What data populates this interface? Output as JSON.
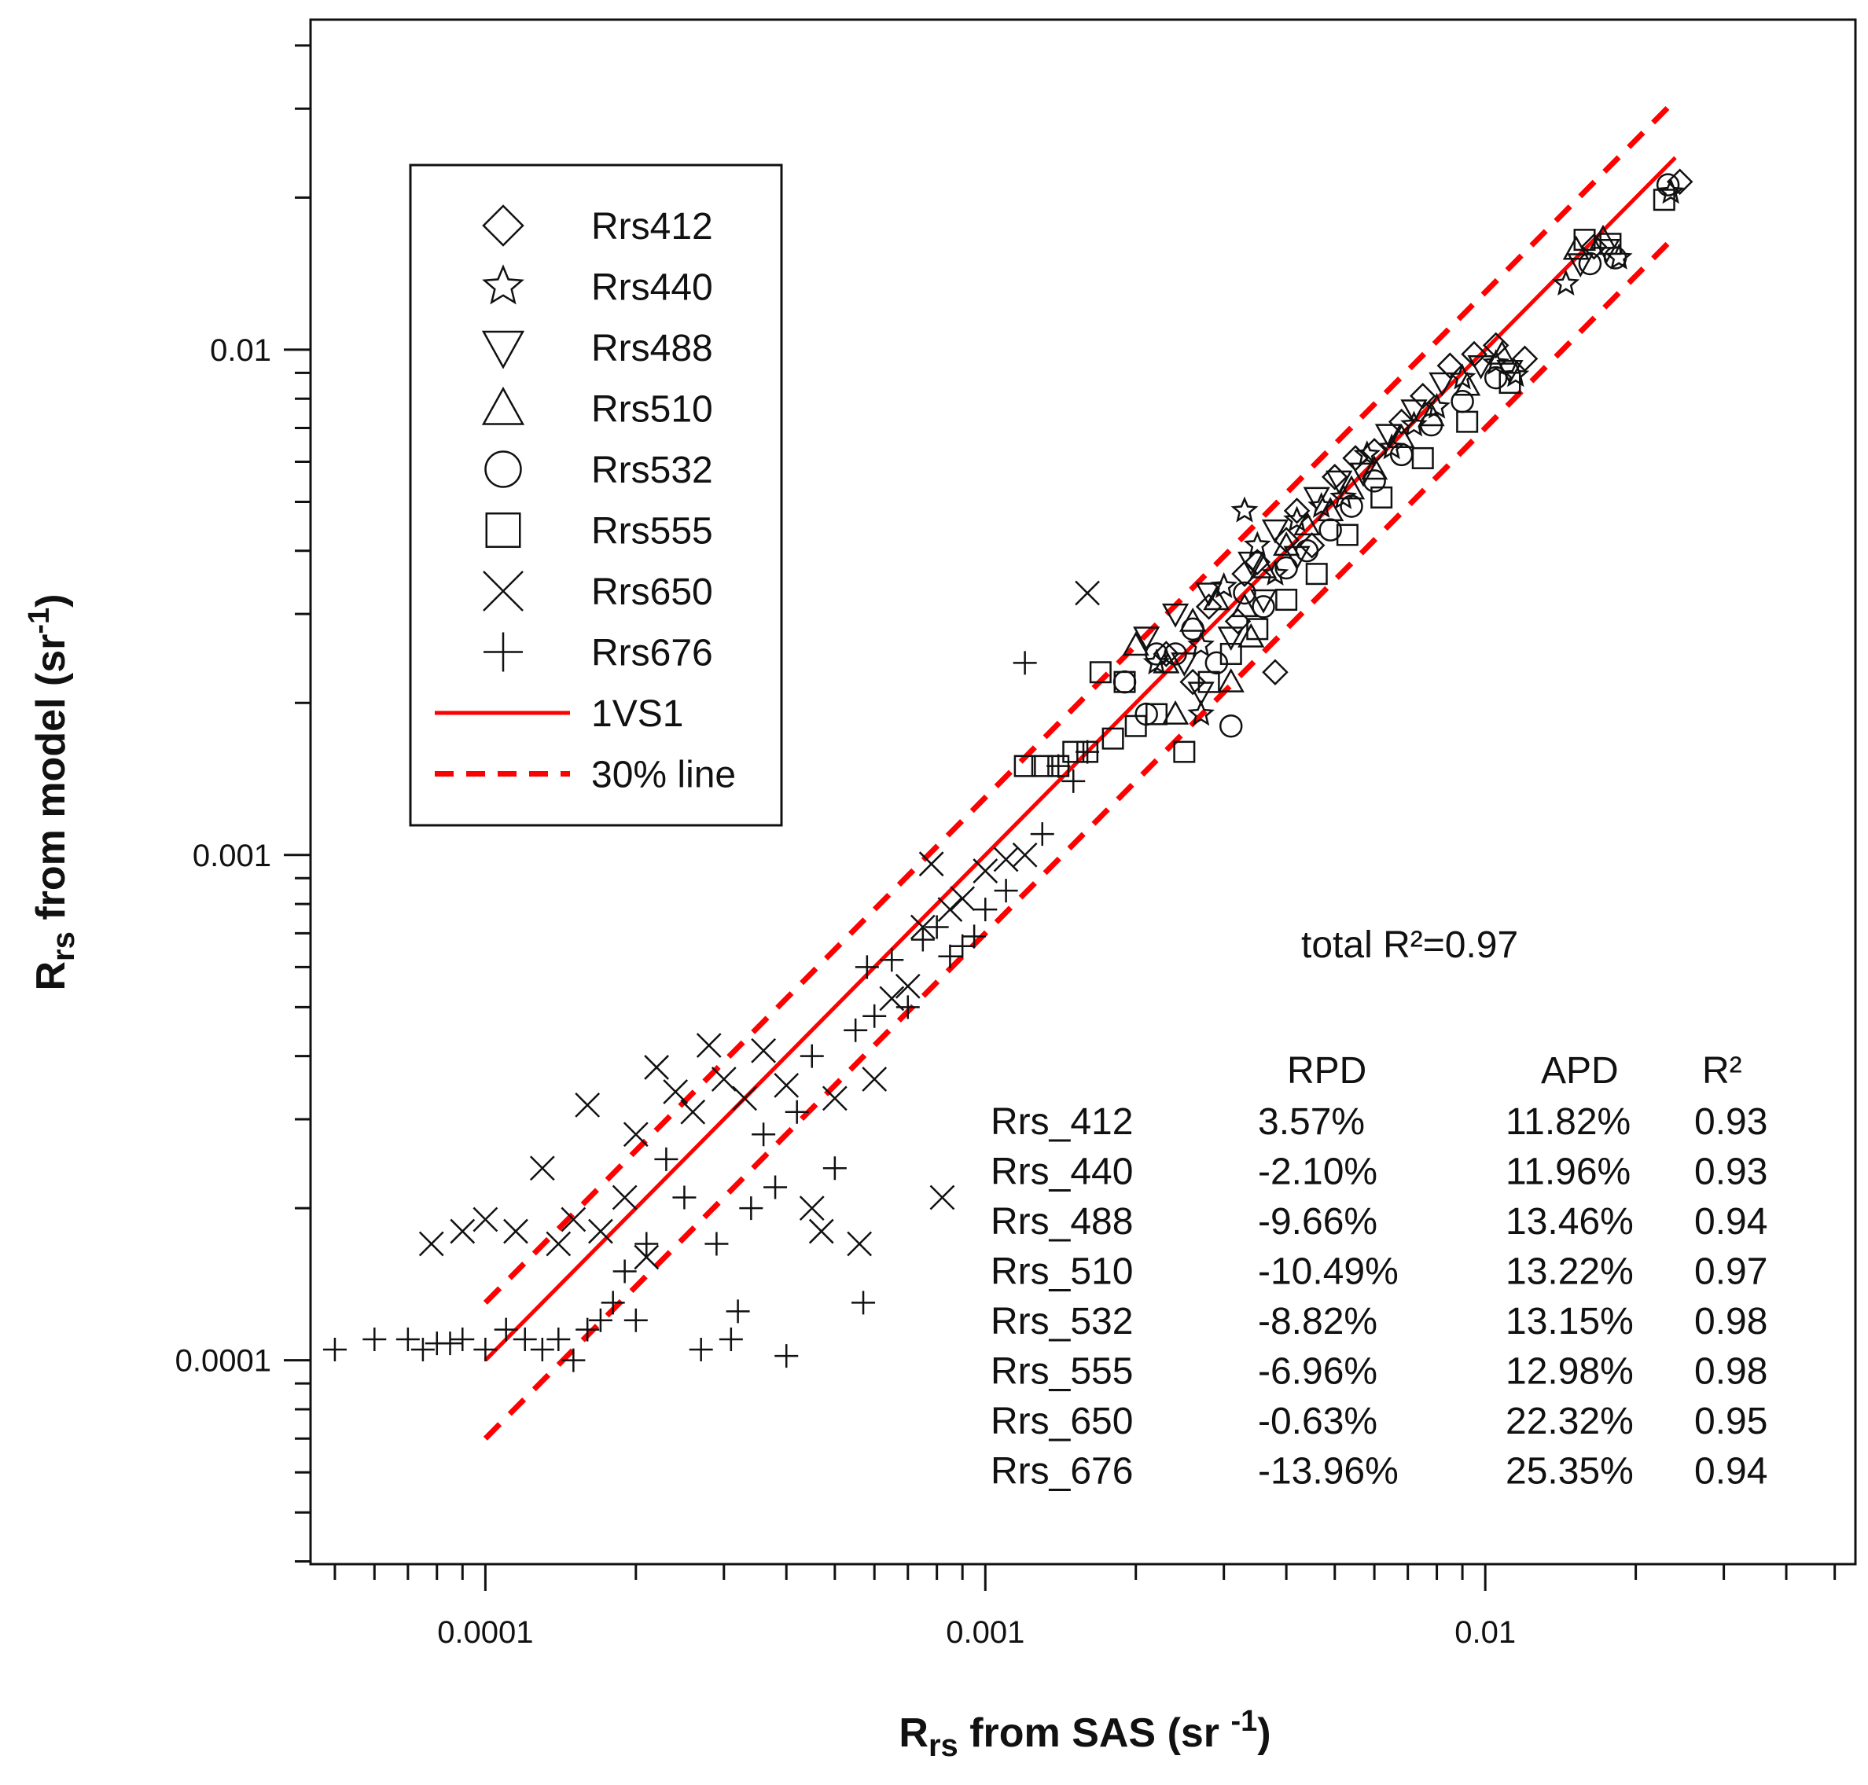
{
  "chart_data": {
    "type": "scatter",
    "x_scale": "log",
    "y_scale": "log",
    "xlim": [
      4.47e-05,
      0.055
    ],
    "ylim": [
      3.95e-05,
      0.045
    ],
    "xlabel": {
      "main": "R",
      "sub": "rs",
      "rest": " from SAS (sr ",
      "sup": "-1",
      "end": ")"
    },
    "ylabel": {
      "main": "R",
      "sub": "rs",
      "rest": " from model (sr",
      "sup": "-1",
      "end": ")"
    },
    "x_ticks": [
      {
        "value": 0.0001,
        "label": "0.0001"
      },
      {
        "value": 0.001,
        "label": "0.001"
      },
      {
        "value": 0.01,
        "label": "0.01"
      }
    ],
    "y_ticks": [
      {
        "value": 0.0001,
        "label": "0.0001"
      },
      {
        "value": 0.001,
        "label": "0.001"
      },
      {
        "value": 0.01,
        "label": "0.01"
      }
    ],
    "legend": [
      {
        "marker": "diamond",
        "label": "Rrs412"
      },
      {
        "marker": "star",
        "label": "Rrs440"
      },
      {
        "marker": "triangle-down",
        "label": "Rrs488"
      },
      {
        "marker": "triangle-up",
        "label": "Rrs510"
      },
      {
        "marker": "circle",
        "label": "Rrs532"
      },
      {
        "marker": "square",
        "label": "Rrs555"
      },
      {
        "marker": "x",
        "label": "Rrs650"
      },
      {
        "marker": "plus",
        "label": "Rrs676"
      },
      {
        "marker": "solid-line",
        "label": "1VS1"
      },
      {
        "marker": "dashed-line",
        "label": "30% line"
      }
    ],
    "line_color": "#ff0000",
    "lines": [
      {
        "name": "1VS1",
        "style": "solid",
        "x": [
          0.0001,
          0.024
        ],
        "y": [
          0.0001,
          0.024
        ]
      },
      {
        "name": "30% line upper",
        "style": "dashed",
        "x": [
          0.0001,
          0.024
        ],
        "y": [
          0.00013,
          0.0312
        ]
      },
      {
        "name": "30% line lower",
        "style": "dashed",
        "x": [
          0.0001,
          0.024
        ],
        "y": [
          7e-05,
          0.0168
        ]
      }
    ],
    "annotation": "total R²=0.97",
    "stats_table": {
      "headers": [
        "",
        "RPD",
        "APD",
        "R²"
      ],
      "rows": [
        [
          "Rrs_412",
          "3.57%",
          "11.82%",
          "0.93"
        ],
        [
          "Rrs_440",
          "-2.10%",
          "11.96%",
          "0.93"
        ],
        [
          "Rrs_488",
          "-9.66%",
          "13.46%",
          "0.94"
        ],
        [
          "Rrs_510",
          "-10.49%",
          "13.22%",
          "0.97"
        ],
        [
          "Rrs_532",
          "-8.82%",
          "13.15%",
          "0.98"
        ],
        [
          "Rrs_555",
          "-6.96%",
          "12.98%",
          "0.98"
        ],
        [
          "Rrs_650",
          "-0.63%",
          "22.32%",
          "0.95"
        ],
        [
          "Rrs_676",
          "-13.96%",
          "25.35%",
          "0.94"
        ]
      ]
    },
    "series": [
      {
        "name": "Rrs412",
        "marker": "diamond",
        "points": [
          [
            0.0023,
            0.0025
          ],
          [
            0.0028,
            0.0031
          ],
          [
            0.0032,
            0.0029
          ],
          [
            0.0035,
            0.0038
          ],
          [
            0.004,
            0.0042
          ],
          [
            0.0045,
            0.0041
          ],
          [
            0.005,
            0.0056
          ],
          [
            0.0055,
            0.0061
          ],
          [
            0.006,
            0.0063
          ],
          [
            0.0068,
            0.0072
          ],
          [
            0.0075,
            0.0081
          ],
          [
            0.0085,
            0.0093
          ],
          [
            0.0095,
            0.0098
          ],
          [
            0.0105,
            0.0102
          ],
          [
            0.012,
            0.0096
          ],
          [
            0.0165,
            0.016
          ],
          [
            0.0245,
            0.0215
          ],
          [
            0.0038,
            0.0023
          ],
          [
            0.0026,
            0.0022
          ],
          [
            0.0042,
            0.0048
          ],
          [
            0.0033,
            0.0036
          ]
        ]
      },
      {
        "name": "Rrs440",
        "marker": "star",
        "points": [
          [
            0.0022,
            0.0024
          ],
          [
            0.0027,
            0.0026
          ],
          [
            0.003,
            0.0034
          ],
          [
            0.0035,
            0.0041
          ],
          [
            0.0038,
            0.0036
          ],
          [
            0.0042,
            0.0046
          ],
          [
            0.0047,
            0.0049
          ],
          [
            0.0052,
            0.0051
          ],
          [
            0.0058,
            0.0062
          ],
          [
            0.0065,
            0.0064
          ],
          [
            0.0072,
            0.0071
          ],
          [
            0.008,
            0.0077
          ],
          [
            0.009,
            0.0088
          ],
          [
            0.0105,
            0.0094
          ],
          [
            0.0115,
            0.0089
          ],
          [
            0.0145,
            0.0135
          ],
          [
            0.0185,
            0.0152
          ],
          [
            0.0235,
            0.0205
          ],
          [
            0.0033,
            0.0048
          ],
          [
            0.0027,
            0.0019
          ]
        ]
      },
      {
        "name": "Rrs488",
        "marker": "triangle-down",
        "points": [
          [
            0.0021,
            0.0027
          ],
          [
            0.0024,
            0.003
          ],
          [
            0.0028,
            0.0033
          ],
          [
            0.0031,
            0.0027
          ],
          [
            0.0034,
            0.0038
          ],
          [
            0.0038,
            0.0044
          ],
          [
            0.0042,
            0.0039
          ],
          [
            0.0046,
            0.0051
          ],
          [
            0.0051,
            0.0055
          ],
          [
            0.0057,
            0.0057
          ],
          [
            0.0064,
            0.0068
          ],
          [
            0.0072,
            0.0076
          ],
          [
            0.0082,
            0.0086
          ],
          [
            0.0098,
            0.0093
          ],
          [
            0.0112,
            0.0091
          ],
          [
            0.0155,
            0.0148
          ],
          [
            0.0175,
            0.0158
          ],
          [
            0.0027,
            0.0021
          ],
          [
            0.0036,
            0.0032
          ],
          [
            0.0025,
            0.0024
          ]
        ]
      },
      {
        "name": "Rrs510",
        "marker": "triangle-up",
        "points": [
          [
            0.002,
            0.0026
          ],
          [
            0.0023,
            0.0024
          ],
          [
            0.0026,
            0.0029
          ],
          [
            0.0029,
            0.0032
          ],
          [
            0.0033,
            0.0031
          ],
          [
            0.0036,
            0.0037
          ],
          [
            0.004,
            0.0041
          ],
          [
            0.0044,
            0.0045
          ],
          [
            0.0049,
            0.0048
          ],
          [
            0.0054,
            0.0053
          ],
          [
            0.006,
            0.0058
          ],
          [
            0.0068,
            0.0067
          ],
          [
            0.0078,
            0.0074
          ],
          [
            0.0092,
            0.0085
          ],
          [
            0.0108,
            0.0098
          ],
          [
            0.0152,
            0.0158
          ],
          [
            0.0172,
            0.0166
          ],
          [
            0.0031,
            0.0022
          ],
          [
            0.0024,
            0.0019
          ],
          [
            0.0034,
            0.0027
          ]
        ]
      },
      {
        "name": "Rrs532",
        "marker": "circle",
        "points": [
          [
            0.0019,
            0.0022
          ],
          [
            0.0021,
            0.0019
          ],
          [
            0.0024,
            0.0025
          ],
          [
            0.0026,
            0.0028
          ],
          [
            0.0029,
            0.0024
          ],
          [
            0.0031,
            0.0018
          ],
          [
            0.0033,
            0.0033
          ],
          [
            0.0036,
            0.0031
          ],
          [
            0.004,
            0.0037
          ],
          [
            0.0044,
            0.004
          ],
          [
            0.0049,
            0.0044
          ],
          [
            0.0054,
            0.0049
          ],
          [
            0.006,
            0.0055
          ],
          [
            0.0068,
            0.0062
          ],
          [
            0.0078,
            0.0071
          ],
          [
            0.009,
            0.0079
          ],
          [
            0.0105,
            0.0088
          ],
          [
            0.0162,
            0.0148
          ],
          [
            0.0182,
            0.0152
          ],
          [
            0.0232,
            0.0212
          ],
          [
            0.0022,
            0.0025
          ]
        ]
      },
      {
        "name": "Rrs555",
        "marker": "square",
        "points": [
          [
            0.0012,
            0.0015
          ],
          [
            0.0013,
            0.0015
          ],
          [
            0.0014,
            0.0015
          ],
          [
            0.0015,
            0.0016
          ],
          [
            0.0016,
            0.0016
          ],
          [
            0.0017,
            0.0023
          ],
          [
            0.0018,
            0.0017
          ],
          [
            0.002,
            0.0018
          ],
          [
            0.0022,
            0.0019
          ],
          [
            0.0025,
            0.0016
          ],
          [
            0.0028,
            0.0022
          ],
          [
            0.0031,
            0.0025
          ],
          [
            0.0035,
            0.0028
          ],
          [
            0.004,
            0.0032
          ],
          [
            0.0046,
            0.0036
          ],
          [
            0.0053,
            0.0043
          ],
          [
            0.0062,
            0.0051
          ],
          [
            0.0075,
            0.0061
          ],
          [
            0.0092,
            0.0072
          ],
          [
            0.0112,
            0.0086
          ],
          [
            0.0158,
            0.0165
          ],
          [
            0.0178,
            0.0162
          ],
          [
            0.0228,
            0.0198
          ],
          [
            0.0019,
            0.0022
          ]
        ]
      },
      {
        "name": "Rrs650",
        "marker": "x",
        "points": [
          [
            7.8e-05,
            0.00017
          ],
          [
            9e-05,
            0.00018
          ],
          [
            0.0001,
            0.00019
          ],
          [
            0.000115,
            0.00018
          ],
          [
            0.00013,
            0.00024
          ],
          [
            0.00014,
            0.00017
          ],
          [
            0.00015,
            0.00019
          ],
          [
            0.00016,
            0.00032
          ],
          [
            0.00017,
            0.00018
          ],
          [
            0.00019,
            0.00021
          ],
          [
            0.0002,
            0.00028
          ],
          [
            0.00021,
            0.00016
          ],
          [
            0.00022,
            0.00038
          ],
          [
            0.00024,
            0.00034
          ],
          [
            0.00026,
            0.00031
          ],
          [
            0.00028,
            0.00042
          ],
          [
            0.0003,
            0.00036
          ],
          [
            0.00033,
            0.00033
          ],
          [
            0.00036,
            0.00041
          ],
          [
            0.0004,
            0.00035
          ],
          [
            0.00045,
            0.0002
          ],
          [
            0.00047,
            0.00018
          ],
          [
            0.0005,
            0.00033
          ],
          [
            0.00056,
            0.00017
          ],
          [
            0.0006,
            0.00036
          ],
          [
            0.00065,
            0.00052
          ],
          [
            0.0007,
            0.00055
          ],
          [
            0.00075,
            0.00072
          ],
          [
            0.00078,
            0.00096
          ],
          [
            0.00082,
            0.00021
          ],
          [
            0.0009,
            0.00082
          ],
          [
            0.001,
            0.00093
          ],
          [
            0.0011,
            0.00098
          ],
          [
            0.0016,
            0.0033
          ],
          [
            0.0012,
            0.001
          ],
          [
            0.00085,
            0.00078
          ]
        ]
      },
      {
        "name": "Rrs676",
        "marker": "plus",
        "points": [
          [
            5e-05,
            0.000105
          ],
          [
            6e-05,
            0.00011
          ],
          [
            7e-05,
            0.00011
          ],
          [
            7.5e-05,
            0.000105
          ],
          [
            8e-05,
            0.000108
          ],
          [
            8.5e-05,
            0.000108
          ],
          [
            9e-05,
            0.00011
          ],
          [
            0.0001,
            0.000105
          ],
          [
            0.00011,
            0.000115
          ],
          [
            0.00012,
            0.00011
          ],
          [
            0.00013,
            0.000105
          ],
          [
            0.00014,
            0.00011
          ],
          [
            0.00015,
            0.0001
          ],
          [
            0.00016,
            0.000115
          ],
          [
            0.00017,
            0.00012
          ],
          [
            0.00018,
            0.00013
          ],
          [
            0.00019,
            0.00015
          ],
          [
            0.0002,
            0.00012
          ],
          [
            0.00021,
            0.00017
          ],
          [
            0.00023,
            0.00025
          ],
          [
            0.00025,
            0.00021
          ],
          [
            0.00027,
            0.000105
          ],
          [
            0.00029,
            0.00017
          ],
          [
            0.00031,
            0.00011
          ],
          [
            0.00032,
            0.000125
          ],
          [
            0.00034,
            0.0002
          ],
          [
            0.00036,
            0.00028
          ],
          [
            0.00038,
            0.00022
          ],
          [
            0.0004,
            0.000102
          ],
          [
            0.00042,
            0.00031
          ],
          [
            0.00045,
            0.0004
          ],
          [
            0.0005,
            0.00024
          ],
          [
            0.00055,
            0.00045
          ],
          [
            0.00057,
            0.00013
          ],
          [
            0.00058,
            0.0006
          ],
          [
            0.0006,
            0.00048
          ],
          [
            0.00065,
            0.00062
          ],
          [
            0.0007,
            0.0005
          ],
          [
            0.00075,
            0.00068
          ],
          [
            0.0008,
            0.00072
          ],
          [
            0.00085,
            0.00063
          ],
          [
            0.0009,
            0.00066
          ],
          [
            0.00095,
            0.00069
          ],
          [
            0.001,
            0.00078
          ],
          [
            0.0011,
            0.00085
          ],
          [
            0.0012,
            0.0024
          ],
          [
            0.0013,
            0.0011
          ],
          [
            0.0014,
            0.0015
          ],
          [
            0.0015,
            0.0014
          ],
          [
            0.0016,
            0.0016
          ]
        ]
      }
    ]
  }
}
